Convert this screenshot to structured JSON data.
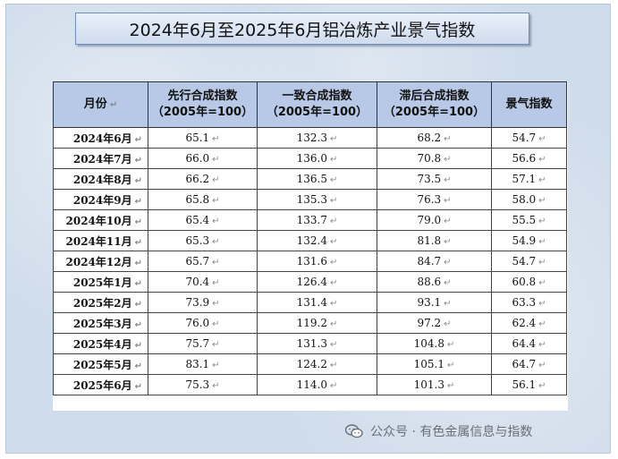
{
  "title": "2024年6月至2025年6月铝冶炼产业景气指数",
  "table": {
    "headers": [
      {
        "line1": "月份",
        "line2": ""
      },
      {
        "line1": "先行合成指数",
        "line2": "（2005年=100）"
      },
      {
        "line1": "一致合成指数",
        "line2": "（2005年=100）"
      },
      {
        "line1": "滞后合成指数",
        "line2": "（2005年=100）"
      },
      {
        "line1": "景气指数",
        "line2": ""
      }
    ],
    "rows": [
      {
        "month": "2024年6月",
        "leading": "65.1",
        "coincident": "132.3",
        "lagging": "68.2",
        "prosperity": "54.7"
      },
      {
        "month": "2024年7月",
        "leading": "66.0",
        "coincident": "136.0",
        "lagging": "70.8",
        "prosperity": "56.6"
      },
      {
        "month": "2024年8月",
        "leading": "66.2",
        "coincident": "136.5",
        "lagging": "73.5",
        "prosperity": "57.1"
      },
      {
        "month": "2024年9月",
        "leading": "65.8",
        "coincident": "135.3",
        "lagging": "76.3",
        "prosperity": "58.0"
      },
      {
        "month": "2024年10月",
        "leading": "65.4",
        "coincident": "133.7",
        "lagging": "79.0",
        "prosperity": "55.5"
      },
      {
        "month": "2024年11月",
        "leading": "65.3",
        "coincident": "132.4",
        "lagging": "81.8",
        "prosperity": "54.9"
      },
      {
        "month": "2024年12月",
        "leading": "65.7",
        "coincident": "131.6",
        "lagging": "84.7",
        "prosperity": "54.7"
      },
      {
        "month": "2025年1月",
        "leading": "70.4",
        "coincident": "126.4",
        "lagging": "88.6",
        "prosperity": "60.8"
      },
      {
        "month": "2025年2月",
        "leading": "73.9",
        "coincident": "131.4",
        "lagging": "93.1",
        "prosperity": "63.3"
      },
      {
        "month": "2025年3月",
        "leading": "76.0",
        "coincident": "119.2",
        "lagging": "97.2",
        "prosperity": "62.4"
      },
      {
        "month": "2025年4月",
        "leading": "75.7",
        "coincident": "131.3",
        "lagging": "104.8",
        "prosperity": "64.4"
      },
      {
        "month": "2025年5月",
        "leading": "83.1",
        "coincident": "124.2",
        "lagging": "105.1",
        "prosperity": "64.7"
      },
      {
        "month": "2025年6月",
        "leading": "75.3",
        "coincident": "114.0",
        "lagging": "101.3",
        "prosperity": "56.1"
      }
    ]
  },
  "watermark": {
    "text": "公众号 · 有色金属信息与指数",
    "icon": "wechat-icon"
  },
  "colors": {
    "header_bg": "#b7c9e6",
    "frame_bg": "#cfdceb",
    "title_border": "#6f8fb8"
  }
}
